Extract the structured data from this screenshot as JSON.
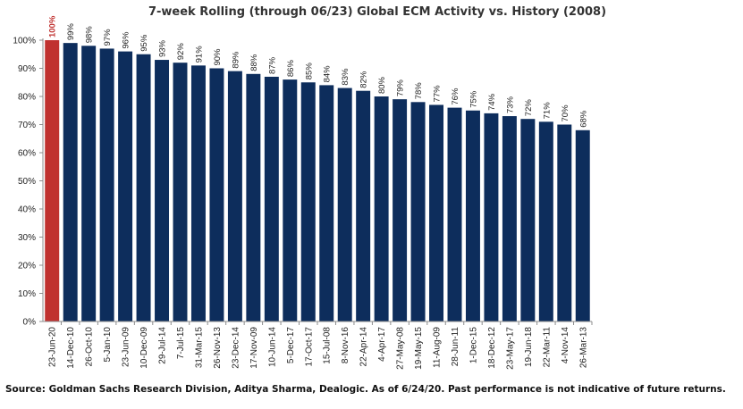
{
  "chart_data": {
    "type": "bar",
    "title": "7-week Rolling (through 06/23) Global ECM Activity vs. History (2008)",
    "xlabel": "",
    "ylabel": "",
    "ylim": [
      0,
      100
    ],
    "y_ticks": [
      "0%",
      "10%",
      "20%",
      "30%",
      "40%",
      "50%",
      "60%",
      "70%",
      "80%",
      "90%",
      "100%"
    ],
    "grid": false,
    "legend": "none",
    "categories": [
      "23-Jun-20",
      "14-Dec-10",
      "26-Oct-10",
      "5-Jan-10",
      "23-Jun-09",
      "10-Dec-09",
      "29-Jul-14",
      "7-Jul-15",
      "31-Mar-15",
      "26-Nov-13",
      "23-Dec-14",
      "17-Nov-09",
      "10-Jun-14",
      "5-Dec-17",
      "17-Oct-17",
      "15-Jul-08",
      "8-Nov-16",
      "22-Apr-14",
      "4-Apr-17",
      "27-May-08",
      "19-May-15",
      "11-Aug-09",
      "28-Jun-11",
      "1-Dec-15",
      "18-Dec-12",
      "23-May-17",
      "19-Jun-18",
      "22-Mar-11",
      "4-Nov-14",
      "26-Mar-13"
    ],
    "values": [
      100,
      99,
      98,
      97,
      96,
      95,
      93,
      92,
      91,
      90,
      89,
      88,
      87,
      86,
      85,
      84,
      83,
      82,
      80,
      79,
      78,
      77,
      76,
      75,
      74,
      73,
      72,
      71,
      70,
      68
    ],
    "value_labels": [
      "100%",
      "99%",
      "98%",
      "97%",
      "96%",
      "95%",
      "93%",
      "92%",
      "91%",
      "90%",
      "89%",
      "88%",
      "87%",
      "86%",
      "85%",
      "84%",
      "83%",
      "82%",
      "80%",
      "79%",
      "78%",
      "77%",
      "76%",
      "75%",
      "74%",
      "73%",
      "72%",
      "71%",
      "70%",
      "68%"
    ],
    "highlight_index": 0,
    "colors": {
      "bar": "#0d2d5c",
      "highlight": "#c0312f",
      "axis": "#8c8c8c"
    }
  },
  "source_note": "Source: Goldman Sachs Research Division, Aditya Sharma, Dealogic. As of 6/24/20. Past performance is not indicative of future returns."
}
